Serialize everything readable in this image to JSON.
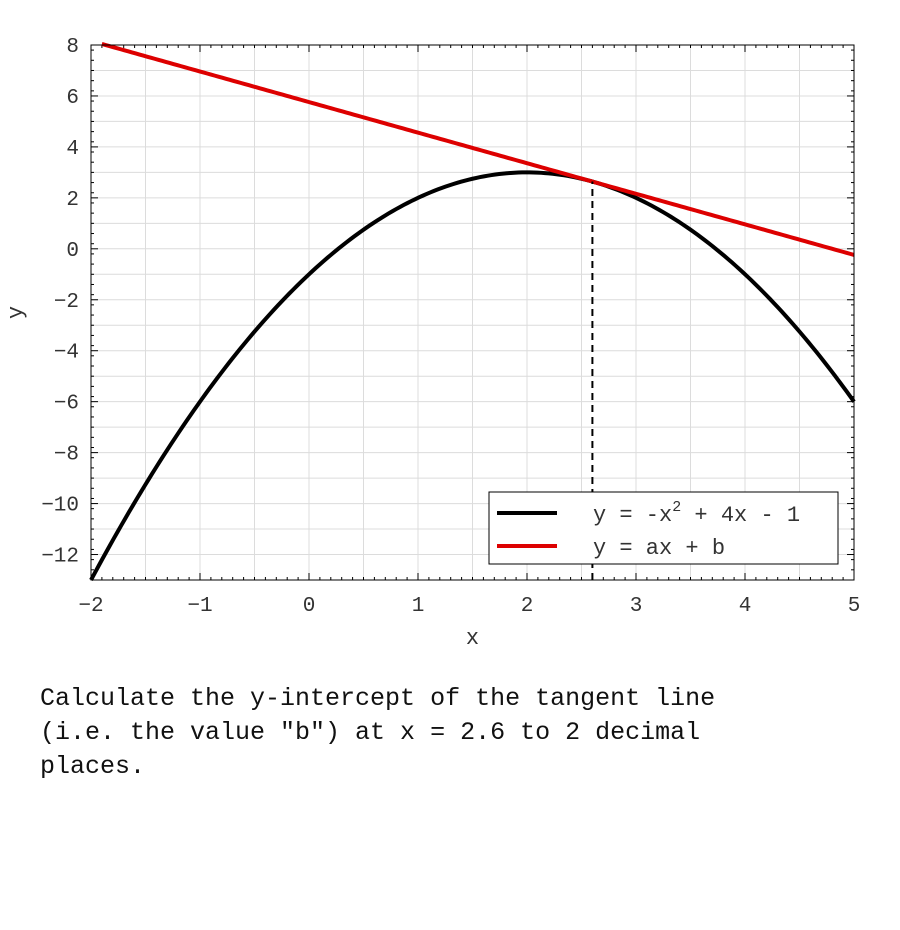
{
  "chart_data": {
    "type": "line",
    "xlabel": "x",
    "ylabel": "y",
    "xlim": [
      -2,
      5
    ],
    "ylim": [
      -13,
      8
    ],
    "x_ticks": [
      -2,
      -1,
      0,
      1,
      2,
      3,
      4,
      5
    ],
    "y_ticks": [
      -12,
      -10,
      -8,
      -6,
      -4,
      -2,
      0,
      2,
      4,
      6,
      8
    ],
    "grid": true,
    "legend_position": "bottom-right",
    "series": [
      {
        "name": "y = -x² + 4x - 1",
        "legend_base": "y = -x",
        "legend_sup": "2",
        "legend_rest": " + 4x - 1",
        "color": "#000000",
        "function": {
          "kind": "quadratic",
          "a": -1,
          "b": 4,
          "c": -1
        },
        "x_range": [
          -2,
          5
        ]
      },
      {
        "name": "y = ax + b",
        "color": "#dd0000",
        "function": {
          "kind": "linear",
          "slope": -1.2,
          "intercept": 5.76
        },
        "x_range": [
          -1.9,
          5
        ]
      }
    ],
    "annotations": [
      {
        "type": "vertical-dashed-line",
        "x": 2.6,
        "y_from": -13,
        "y_to": 2.64,
        "color": "#000000"
      }
    ]
  },
  "question": "Calculate the y-intercept of the tangent line\n(i.e. the value \"b\") at x = 2.6 to 2 decimal\nplaces."
}
